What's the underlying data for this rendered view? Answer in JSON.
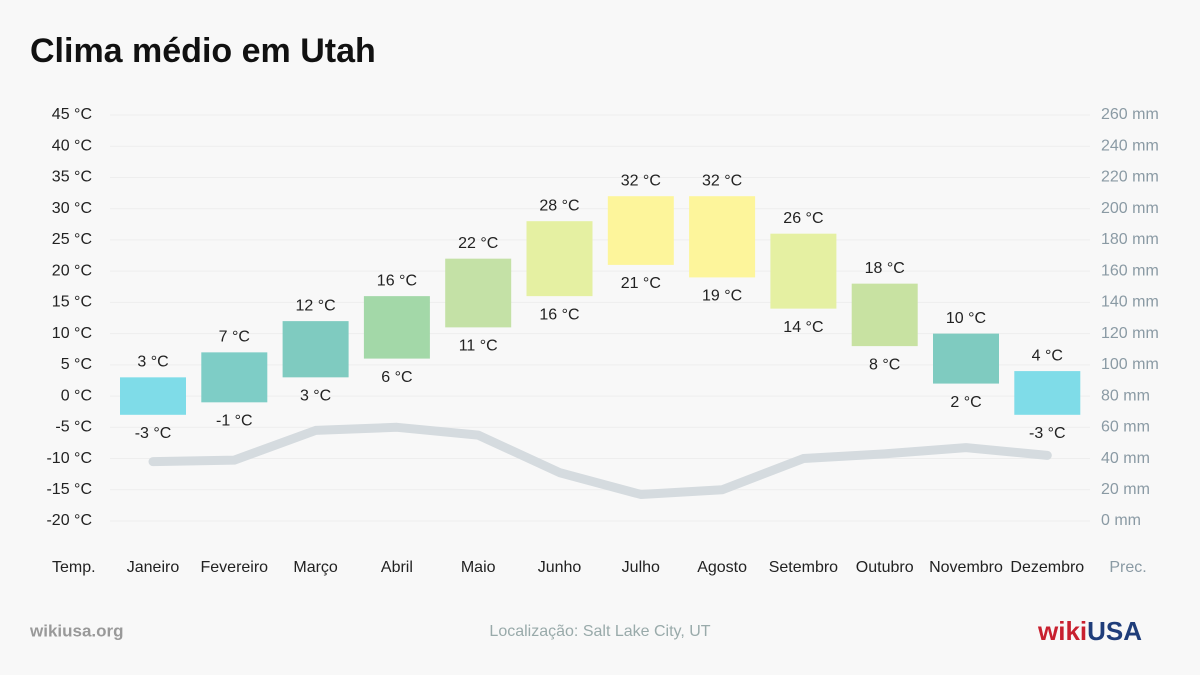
{
  "chart_data": {
    "type": "range_bar",
    "title": "Clima médio em Utah",
    "categories": [
      "Janeiro",
      "Fevereiro",
      "Março",
      "Abril",
      "Maio",
      "Junho",
      "Julho",
      "Agosto",
      "Setembro",
      "Outubro",
      "Novembro",
      "Dezembro"
    ],
    "max": {
      "values": [
        3,
        7,
        12,
        16,
        22,
        28,
        32,
        32,
        26,
        18,
        10,
        4
      ],
      "value_labels": [
        "3 °C",
        "7 °C",
        "12 °C",
        "16 °C",
        "22 °C",
        "28 °C",
        "32 °C",
        "32 °C",
        "26 °C",
        "18 °C",
        "10 °C",
        "4 °C"
      ]
    },
    "min": {
      "values": [
        -3,
        -1,
        3,
        6,
        11,
        16,
        21,
        19,
        14,
        8,
        2,
        -3
      ],
      "value_labels": [
        "-3 °C",
        "-1 °C",
        "3 °C",
        "6 °C",
        "11 °C",
        "16 °C",
        "21 °C",
        "19 °C",
        "14 °C",
        "8 °C",
        "2 °C",
        "-3 °C"
      ]
    },
    "colors": [
      "#7fdce8",
      "#7ecdc6",
      "#7fcbc0",
      "#a3d8a8",
      "#c4e1a6",
      "#e5f0a2",
      "#fdf59b",
      "#fdf59b",
      "#e5f0a2",
      "#c8e2a2",
      "#7fcbc0",
      "#7fdce8"
    ],
    "precipitation": {
      "values": [
        38,
        39,
        58,
        60,
        55,
        31,
        17,
        20,
        40,
        43,
        47,
        42
      ],
      "color": "#d5dbdf",
      "axis": "y2"
    },
    "ylim": [
      -20,
      45
    ],
    "yticks": [
      {
        "value": 45,
        "label": "45 °C"
      },
      {
        "value": 40,
        "label": "40 °C"
      },
      {
        "value": 35,
        "label": "35 °C"
      },
      {
        "value": 30,
        "label": "30 °C"
      },
      {
        "value": 25,
        "label": "25 °C"
      },
      {
        "value": 20,
        "label": "20 °C"
      },
      {
        "value": 15,
        "label": "15 °C"
      },
      {
        "value": 10,
        "label": "10 °C"
      },
      {
        "value": 5,
        "label": "5 °C"
      },
      {
        "value": 0,
        "label": "0 °C"
      },
      {
        "value": -5,
        "label": "-5 °C"
      },
      {
        "value": -10,
        "label": "-10 °C"
      },
      {
        "value": -15,
        "label": "-15 °C"
      },
      {
        "value": -20,
        "label": "-20 °C"
      }
    ],
    "y2lim": [
      0,
      260
    ],
    "y2ticks": [
      {
        "value": 260,
        "label": "260 mm"
      },
      {
        "value": 240,
        "label": "240 mm"
      },
      {
        "value": 220,
        "label": "220 mm"
      },
      {
        "value": 200,
        "label": "200 mm"
      },
      {
        "value": 180,
        "label": "180 mm"
      },
      {
        "value": 160,
        "label": "160 mm"
      },
      {
        "value": 140,
        "label": "140 mm"
      },
      {
        "value": 120,
        "label": "120 mm"
      },
      {
        "value": 100,
        "label": "100 mm"
      },
      {
        "value": 80,
        "label": "80 mm"
      },
      {
        "value": 60,
        "label": "60 mm"
      },
      {
        "value": 40,
        "label": "40 mm"
      },
      {
        "value": 20,
        "label": "20 mm"
      },
      {
        "value": 0,
        "label": "0 mm"
      }
    ],
    "grid": true,
    "y_label": "Temp.",
    "y2_label": "Prec.",
    "source": "wikiusa.org",
    "location": "Localização: Salt Lake City, UT",
    "logo": {
      "wiki": "wiki",
      "usa": "USA"
    }
  }
}
